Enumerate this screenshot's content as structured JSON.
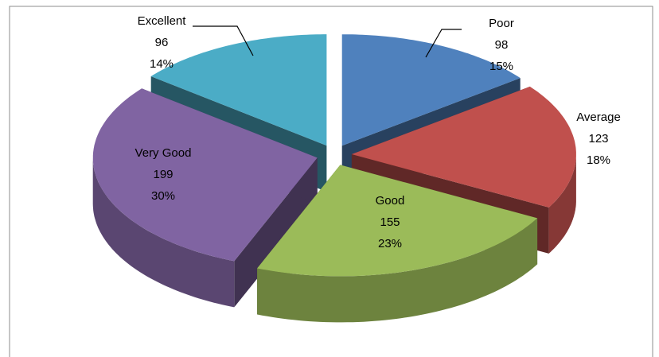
{
  "chart_data": {
    "type": "pie3d",
    "categories": [
      "Poor",
      "Average",
      "Good",
      "Very Good",
      "Excellent"
    ],
    "values": [
      98,
      123,
      155,
      199,
      96
    ],
    "percent_labels": [
      "15%",
      "18%",
      "23%",
      "30%",
      "14%"
    ],
    "colors": [
      "#4f81bd",
      "#c0504d",
      "#9bbb59",
      "#8064a2",
      "#4bacc6"
    ]
  }
}
